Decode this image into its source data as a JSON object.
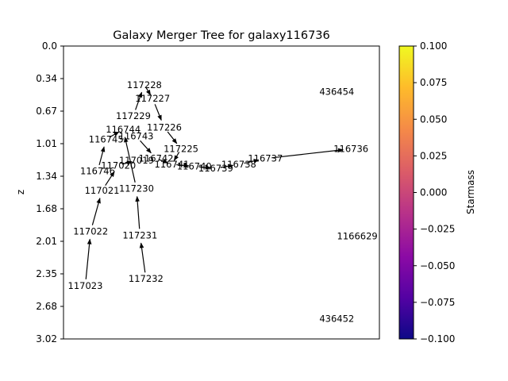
{
  "chart_data": {
    "type": "scatter",
    "title": "Galaxy Merger Tree for galaxy116736",
    "ylabel": "z",
    "xlabel": "",
    "ylim": [
      0.0,
      3.02
    ],
    "y_inverted": true,
    "yticks": [
      "0.0",
      "0.34",
      "0.67",
      "1.01",
      "1.34",
      "1.68",
      "2.01",
      "2.35",
      "2.68",
      "3.02"
    ],
    "x_axis_ticks": "none",
    "colorbar": {
      "label": "Starmass",
      "cmap": "plasma",
      "range": [
        -0.1,
        0.1
      ],
      "ticks": [
        "0.100",
        "0.075",
        "0.050",
        "0.025",
        "0.000",
        "−0.025",
        "−0.050",
        "−0.075",
        "−0.100"
      ]
    },
    "nodes": [
      {
        "id": "117228",
        "x": 0.256,
        "y": 0.4
      },
      {
        "id": "117227",
        "x": 0.282,
        "y": 0.54
      },
      {
        "id": "117229",
        "x": 0.221,
        "y": 0.72
      },
      {
        "id": "116744",
        "x": 0.189,
        "y": 0.86
      },
      {
        "id": "116743",
        "x": 0.23,
        "y": 0.93
      },
      {
        "id": "117226",
        "x": 0.319,
        "y": 0.84
      },
      {
        "id": "116745",
        "x": 0.135,
        "y": 0.96
      },
      {
        "id": "117225",
        "x": 0.372,
        "y": 1.06
      },
      {
        "id": "117019",
        "x": 0.231,
        "y": 1.18
      },
      {
        "id": "116742",
        "x": 0.293,
        "y": 1.16
      },
      {
        "id": "117020",
        "x": 0.174,
        "y": 1.23
      },
      {
        "id": "116741",
        "x": 0.343,
        "y": 1.22
      },
      {
        "id": "116740",
        "x": 0.414,
        "y": 1.24
      },
      {
        "id": "116739",
        "x": 0.482,
        "y": 1.26
      },
      {
        "id": "116738",
        "x": 0.555,
        "y": 1.22
      },
      {
        "id": "116737",
        "x": 0.639,
        "y": 1.16
      },
      {
        "id": "116736",
        "x": 0.91,
        "y": 1.06
      },
      {
        "id": "116746",
        "x": 0.108,
        "y": 1.29
      },
      {
        "id": "117021",
        "x": 0.122,
        "y": 1.49
      },
      {
        "id": "117230",
        "x": 0.231,
        "y": 1.47
      },
      {
        "id": "117022",
        "x": 0.086,
        "y": 1.91
      },
      {
        "id": "117231",
        "x": 0.242,
        "y": 1.95
      },
      {
        "id": "117023",
        "x": 0.069,
        "y": 2.47
      },
      {
        "id": "117232",
        "x": 0.261,
        "y": 2.4
      },
      {
        "id": "436454",
        "x": 0.865,
        "y": 0.47
      },
      {
        "id": "1166629",
        "x": 0.93,
        "y": 1.96
      },
      {
        "id": "436452",
        "x": 0.865,
        "y": 2.81
      }
    ],
    "edges": [
      {
        "from": "117023",
        "to": "117022"
      },
      {
        "from": "117022",
        "to": "117021"
      },
      {
        "from": "117021",
        "to": "117020"
      },
      {
        "from": "116746",
        "to": "116745"
      },
      {
        "from": "116745",
        "to": "116744"
      },
      {
        "from": "117232",
        "to": "117231"
      },
      {
        "from": "117231",
        "to": "117230"
      },
      {
        "from": "117230",
        "to": "116744"
      },
      {
        "from": "117229",
        "to": "117228"
      },
      {
        "from": "117228",
        "to": "117227"
      },
      {
        "from": "117227",
        "to": "117226"
      },
      {
        "from": "117226",
        "to": "117225"
      },
      {
        "from": "117225",
        "to": "116741"
      },
      {
        "from": "116743",
        "to": "116742"
      },
      {
        "from": "117020",
        "to": "117019"
      },
      {
        "from": "116742",
        "to": "116741"
      },
      {
        "from": "116741",
        "to": "116740"
      },
      {
        "from": "116740",
        "to": "116739"
      },
      {
        "from": "116739",
        "to": "116738"
      },
      {
        "from": "116738",
        "to": "116737"
      },
      {
        "from": "116737",
        "to": "116736"
      }
    ]
  }
}
